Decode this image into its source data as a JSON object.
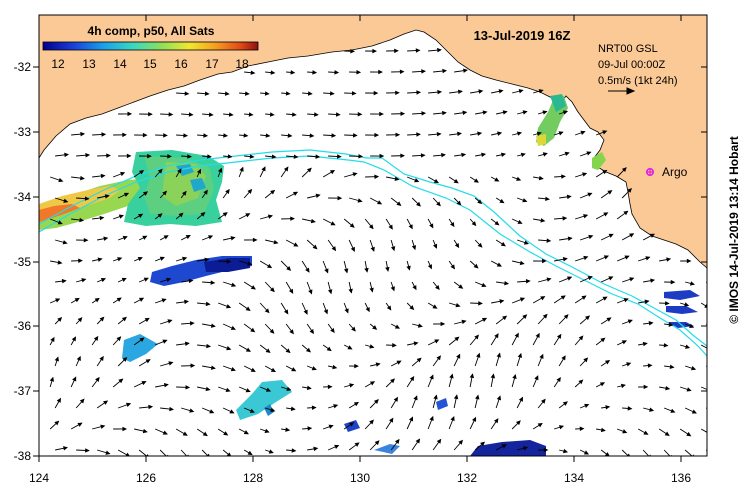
{
  "map": {
    "title": "13-Jul-2019 16Z",
    "colorbar": {
      "label": "4h comp, p50, All Sats",
      "ticks": [
        "12",
        "13",
        "14",
        "15",
        "16",
        "17",
        "18"
      ],
      "min": 11.5,
      "max": 18.5
    },
    "info": {
      "line1": "NRT00 GSL",
      "line2": "09-Jul 00:00Z",
      "line3": "0.5m/s (1kt 24h)"
    },
    "marker": {
      "label": "Argo",
      "lon": 135.45,
      "lat": -33.58,
      "color": "#e020e0"
    },
    "credit": "© IMOS 14-Jul-2019 13:14 Hobart",
    "x_ticks": [
      "124",
      "126",
      "128",
      "130",
      "132",
      "134",
      "136"
    ],
    "y_ticks": [
      "-32",
      "-33",
      "-34",
      "-35",
      "-36",
      "-37",
      "-38"
    ],
    "extent": {
      "lon": [
        124,
        136.5
      ],
      "lat": [
        -38.15,
        -31.35
      ]
    },
    "colors": {
      "land": "#fbc995",
      "ocean": "#ffffff",
      "contour": "#22dde8",
      "arrows": "#000000"
    }
  }
}
